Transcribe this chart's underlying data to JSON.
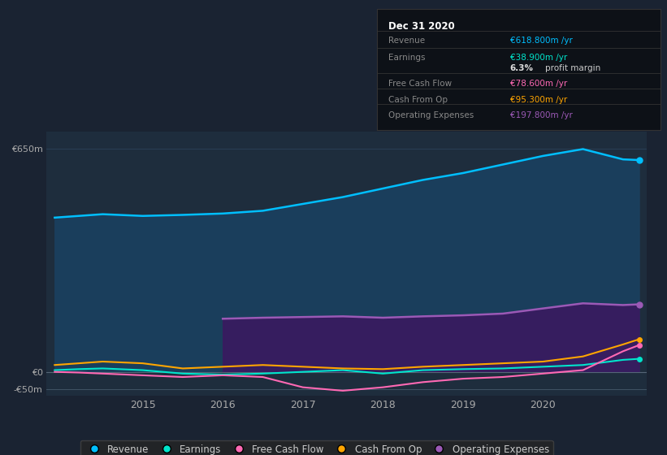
{
  "bg_color": "#1a2332",
  "plot_bg_color": "#1e2d3d",
  "grid_color": "#2a3f55",
  "revenue_color": "#00bfff",
  "revenue_fill": "#1a4060",
  "earnings_color": "#00e5cc",
  "fcf_color": "#ff69b4",
  "cashfromop_color": "#ffa500",
  "opex_color": "#9b59b6",
  "opex_fill": "#3a1a60",
  "ylim": [
    -70,
    700
  ],
  "xlim": [
    2013.8,
    2021.3
  ],
  "revenue_x": [
    2013.9,
    2014.2,
    2014.5,
    2015.0,
    2015.5,
    2016.0,
    2016.5,
    2017.0,
    2017.5,
    2018.0,
    2018.5,
    2019.0,
    2019.5,
    2020.0,
    2020.5,
    2021.0,
    2021.2
  ],
  "revenue_y": [
    450,
    455,
    460,
    455,
    458,
    462,
    470,
    490,
    510,
    535,
    560,
    580,
    605,
    630,
    650,
    620,
    618
  ],
  "earnings_x": [
    2013.9,
    2014.2,
    2014.5,
    2015.0,
    2015.5,
    2016.0,
    2016.5,
    2017.0,
    2017.5,
    2018.0,
    2018.5,
    2019.0,
    2019.5,
    2020.0,
    2020.5,
    2021.0,
    2021.2
  ],
  "earnings_y": [
    5,
    8,
    10,
    5,
    -5,
    -8,
    -5,
    0,
    5,
    -5,
    5,
    8,
    10,
    15,
    20,
    35,
    38
  ],
  "fcf_x": [
    2013.9,
    2014.2,
    2014.5,
    2015.0,
    2015.5,
    2016.0,
    2016.5,
    2017.0,
    2017.5,
    2018.0,
    2018.5,
    2019.0,
    2019.5,
    2020.0,
    2020.5,
    2021.0,
    2021.2
  ],
  "fcf_y": [
    0,
    -2,
    -5,
    -10,
    -15,
    -10,
    -15,
    -45,
    -55,
    -45,
    -30,
    -20,
    -15,
    -5,
    5,
    60,
    78
  ],
  "cashfromop_x": [
    2013.9,
    2014.2,
    2014.5,
    2015.0,
    2015.5,
    2016.0,
    2016.5,
    2017.0,
    2017.5,
    2018.0,
    2018.5,
    2019.0,
    2019.5,
    2020.0,
    2020.5,
    2021.0,
    2021.2
  ],
  "cashfromop_y": [
    20,
    25,
    30,
    25,
    10,
    15,
    20,
    15,
    10,
    8,
    15,
    20,
    25,
    30,
    45,
    80,
    95
  ],
  "opex_x": [
    2016.0,
    2016.5,
    2017.0,
    2017.5,
    2018.0,
    2018.5,
    2019.0,
    2019.5,
    2020.0,
    2020.5,
    2021.0,
    2021.2
  ],
  "opex_y": [
    155,
    158,
    160,
    162,
    158,
    162,
    165,
    170,
    185,
    200,
    195,
    197
  ],
  "info_box_title": "Dec 31 2020",
  "info_rows": [
    {
      "label": "Revenue",
      "value": "€618.800m /yr",
      "value_color": "#00bfff"
    },
    {
      "label": "Earnings",
      "value": "€38.900m /yr",
      "value_color": "#00e5cc"
    },
    {
      "label": "",
      "value": "6.3% profit margin",
      "value_color": "#ffffff"
    },
    {
      "label": "Free Cash Flow",
      "value": "€78.600m /yr",
      "value_color": "#ff69b4"
    },
    {
      "label": "Cash From Op",
      "value": "€95.300m /yr",
      "value_color": "#ffa500"
    },
    {
      "label": "Operating Expenses",
      "value": "€197.800m /yr",
      "value_color": "#9b59b6"
    }
  ],
  "legend_items": [
    {
      "label": "Revenue",
      "color": "#00bfff"
    },
    {
      "label": "Earnings",
      "color": "#00e5cc"
    },
    {
      "label": "Free Cash Flow",
      "color": "#ff69b4"
    },
    {
      "label": "Cash From Op",
      "color": "#ffa500"
    },
    {
      "label": "Operating Expenses",
      "color": "#9b59b6"
    }
  ],
  "ylabel_650": "€650m",
  "ylabel_0": "€0",
  "ylabel_neg50": "-€50m"
}
